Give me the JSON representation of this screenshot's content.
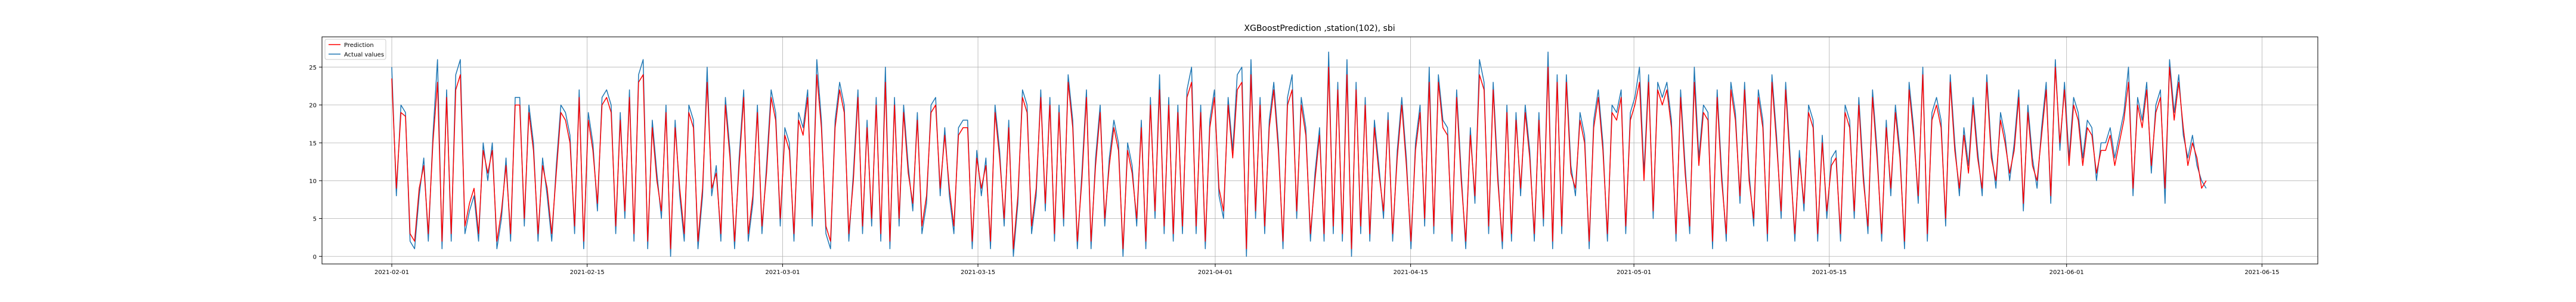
{
  "chart_data": {
    "type": "line",
    "title": "XGBoostPrediction ,station(102), sbi",
    "xlabel": "",
    "ylabel": "",
    "xlim": [
      "2021-01-27",
      "2021-06-19"
    ],
    "ylim": [
      -1,
      29
    ],
    "x_ticks": [
      "2021-02-01",
      "2021-02-15",
      "2021-03-01",
      "2021-03-15",
      "2021-04-01",
      "2021-04-15",
      "2021-05-01",
      "2021-05-15",
      "2021-06-01",
      "2021-06-15"
    ],
    "y_ticks": [
      0,
      5,
      10,
      15,
      20,
      25
    ],
    "grid": true,
    "legend": {
      "position": "top-left",
      "entries": [
        "Prediction",
        "Actual values"
      ]
    },
    "x_start": "2021-02-01",
    "x_end": "2021-06-11",
    "series": [
      {
        "name": "Prediction",
        "color": "#ff0000",
        "values": [
          23.5,
          9,
          19,
          18.5,
          3,
          2,
          9,
          12,
          3,
          15,
          23,
          2,
          21,
          3,
          22,
          24,
          4,
          7,
          9,
          3,
          14,
          11,
          14,
          2,
          6,
          12,
          3,
          20,
          20,
          5,
          19,
          14,
          3,
          12,
          9,
          3,
          11,
          19,
          18,
          15,
          4,
          21,
          2,
          18,
          14,
          7,
          20,
          21,
          19,
          4,
          18,
          6,
          21,
          3,
          23,
          24,
          2,
          17,
          10,
          6,
          19,
          1,
          17,
          9,
          3,
          19,
          17,
          2,
          9,
          23,
          9,
          11,
          3,
          20,
          13,
          2,
          12,
          21,
          3,
          8,
          19,
          4,
          11,
          21,
          18,
          5,
          16,
          14,
          3,
          18,
          16,
          21,
          5,
          24,
          17,
          4,
          2,
          17,
          22,
          19,
          3,
          10,
          21,
          4,
          17,
          5,
          20,
          3,
          23,
          2,
          20,
          5,
          19,
          11,
          7,
          18,
          4,
          8,
          19,
          20,
          9,
          16,
          9,
          4,
          16,
          17,
          17,
          2,
          13,
          9,
          12,
          2,
          19,
          13,
          5,
          17,
          1,
          8,
          21,
          19,
          4,
          9,
          21,
          7,
          20,
          3,
          19,
          5,
          23,
          17,
          2,
          10,
          21,
          2,
          12,
          19,
          5,
          12,
          17,
          14,
          1,
          14,
          11,
          5,
          17,
          2,
          20,
          6,
          22,
          4,
          20,
          3,
          19,
          4,
          21,
          23,
          4,
          19,
          2,
          17,
          21,
          9,
          6,
          20,
          13,
          22,
          23,
          1,
          24,
          6,
          20,
          4,
          17,
          22,
          14,
          2,
          20,
          22,
          6,
          20,
          16,
          3,
          10,
          16,
          3,
          25,
          4,
          22,
          3,
          24,
          1,
          22,
          4,
          20,
          3,
          17,
          11,
          6,
          18,
          3,
          13,
          20,
          12,
          2,
          14,
          19,
          5,
          23,
          4,
          23,
          17,
          16,
          3,
          21,
          10,
          2,
          16,
          8,
          24,
          22,
          4,
          22,
          10,
          2,
          19,
          3,
          18,
          9,
          19,
          13,
          3,
          18,
          5,
          25,
          2,
          23,
          4,
          23,
          11,
          9,
          18,
          15,
          2,
          17,
          21,
          14,
          3,
          19,
          18,
          21,
          4,
          18,
          20,
          23,
          10,
          23,
          6,
          22,
          20,
          22,
          17,
          3,
          21,
          11,
          4,
          23,
          12,
          19,
          18,
          2,
          21,
          10,
          3,
          22,
          18,
          8,
          22,
          10,
          5,
          21,
          17,
          3,
          23,
          15,
          6,
          22,
          12,
          3,
          13,
          7,
          19,
          17,
          3,
          15,
          6,
          12,
          13,
          3,
          19,
          17,
          6,
          20,
          10,
          4,
          21,
          13,
          3,
          17,
          9,
          19,
          13,
          2,
          22,
          16,
          8,
          24,
          3,
          18,
          20,
          17,
          5,
          23,
          14,
          9,
          16,
          11,
          20,
          13,
          9,
          23,
          13,
          10,
          18,
          15,
          11,
          14,
          21,
          7,
          19,
          12,
          10,
          16,
          22,
          8,
          25,
          15,
          22,
          12,
          20,
          18,
          12,
          17,
          16,
          11,
          14,
          14,
          16,
          12,
          15,
          18,
          23,
          9,
          20,
          17,
          22,
          12,
          19,
          21,
          9,
          25,
          18,
          23,
          17,
          12,
          15,
          13,
          9,
          10
        ]
      },
      {
        "name": "Actual values",
        "color": "#1f77b4",
        "values": [
          25,
          8,
          20,
          19,
          2,
          1,
          8,
          13,
          2,
          16,
          26,
          1,
          22,
          2,
          24,
          26,
          3,
          6,
          8,
          2,
          15,
          10,
          15,
          1,
          5,
          13,
          2,
          21,
          21,
          4,
          20,
          15,
          2,
          13,
          8,
          2,
          12,
          20,
          19,
          16,
          3,
          22,
          1,
          19,
          15,
          6,
          21,
          22,
          20,
          3,
          19,
          5,
          22,
          2,
          24,
          26,
          1,
          18,
          11,
          5,
          20,
          0,
          18,
          8,
          2,
          20,
          18,
          1,
          8,
          25,
          8,
          12,
          2,
          21,
          14,
          1,
          13,
          22,
          2,
          7,
          20,
          3,
          12,
          22,
          19,
          4,
          17,
          15,
          2,
          19,
          17,
          22,
          4,
          26,
          18,
          3,
          1,
          18,
          23,
          20,
          2,
          11,
          22,
          3,
          18,
          4,
          21,
          2,
          25,
          1,
          21,
          4,
          20,
          12,
          6,
          19,
          3,
          7,
          20,
          21,
          8,
          17,
          8,
          3,
          17,
          18,
          18,
          1,
          14,
          8,
          13,
          1,
          20,
          14,
          4,
          18,
          0,
          7,
          22,
          20,
          3,
          8,
          22,
          6,
          21,
          2,
          20,
          4,
          24,
          18,
          1,
          11,
          22,
          1,
          13,
          20,
          4,
          13,
          18,
          15,
          0,
          15,
          12,
          4,
          18,
          1,
          21,
          5,
          24,
          3,
          21,
          2,
          20,
          3,
          22,
          25,
          3,
          20,
          1,
          18,
          22,
          8,
          5,
          21,
          14,
          24,
          25,
          0,
          26,
          5,
          21,
          3,
          18,
          23,
          15,
          1,
          21,
          24,
          5,
          21,
          17,
          2,
          11,
          17,
          2,
          27,
          3,
          23,
          2,
          26,
          0,
          23,
          3,
          21,
          2,
          18,
          12,
          5,
          19,
          2,
          14,
          21,
          13,
          1,
          15,
          20,
          4,
          25,
          3,
          24,
          18,
          17,
          2,
          22,
          11,
          1,
          17,
          7,
          26,
          23,
          3,
          23,
          11,
          1,
          20,
          2,
          19,
          8,
          20,
          14,
          2,
          19,
          4,
          27,
          1,
          24,
          3,
          24,
          12,
          8,
          19,
          16,
          1,
          18,
          22,
          15,
          2,
          20,
          19,
          22,
          3,
          19,
          21,
          25,
          11,
          24,
          5,
          23,
          21,
          23,
          18,
          2,
          22,
          12,
          3,
          25,
          13,
          20,
          19,
          1,
          22,
          11,
          2,
          23,
          19,
          7,
          23,
          11,
          4,
          22,
          18,
          2,
          24,
          16,
          5,
          23,
          13,
          2,
          14,
          6,
          20,
          18,
          2,
          16,
          5,
          13,
          14,
          2,
          20,
          18,
          5,
          21,
          11,
          3,
          22,
          14,
          2,
          18,
          8,
          20,
          14,
          1,
          23,
          17,
          7,
          25,
          2,
          19,
          21,
          18,
          4,
          24,
          15,
          8,
          17,
          12,
          21,
          14,
          8,
          24,
          14,
          9,
          19,
          16,
          10,
          15,
          22,
          6,
          20,
          13,
          9,
          17,
          23,
          7,
          26,
          14,
          23,
          13,
          21,
          19,
          13,
          18,
          17,
          10,
          15,
          15,
          17,
          13,
          16,
          19,
          25,
          8,
          21,
          18,
          23,
          11,
          20,
          22,
          7,
          26,
          19,
          24,
          16,
          13,
          16,
          12,
          10,
          9
        ]
      }
    ]
  }
}
